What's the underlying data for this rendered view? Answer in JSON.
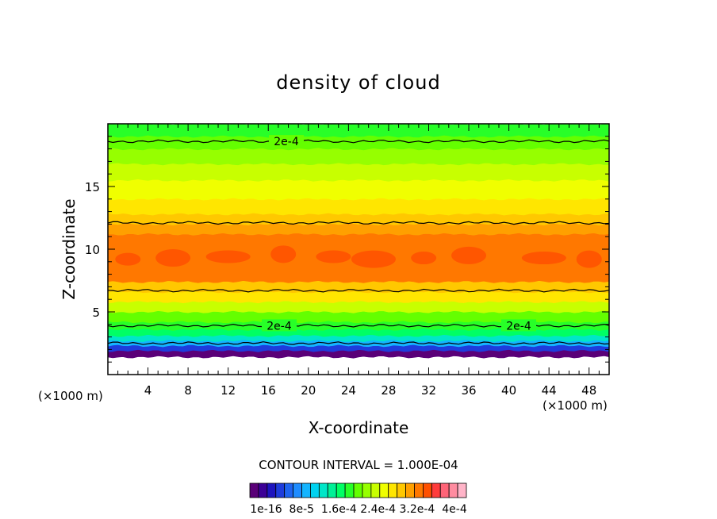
{
  "chart_data": {
    "type": "contour",
    "title": "density of cloud",
    "xlabel": "X-coordinate",
    "ylabel": "Z-coordinate",
    "x_unit_label": "(×1000 m)",
    "y_unit_label": "(×1000 m)",
    "xlim": [
      0,
      50
    ],
    "ylim": [
      0,
      20
    ],
    "xticks": [
      "4",
      "8",
      "12",
      "16",
      "20",
      "24",
      "28",
      "32",
      "36",
      "40",
      "44",
      "48"
    ],
    "yticks": [
      "5",
      "10",
      "15"
    ],
    "contour_interval_label": "CONTOUR INTERVAL = 1.000E-04",
    "contour_line_labels": [
      "2e-4",
      "2e-4",
      "2e-4"
    ],
    "colorbar_labels": [
      "1e-16",
      "8e-5",
      "1.6e-4",
      "2.4e-4",
      "3.2e-4",
      "4e-4"
    ],
    "colorbar_label_text": "1e-16  8e-5  1.6e-4 2.4e-4 3.2e-4  4e-4",
    "colorbar_colors": [
      "#5a0078",
      "#3c0096",
      "#1e14be",
      "#1e3cdc",
      "#1e64f0",
      "#1e8cff",
      "#14b4ff",
      "#00d2f0",
      "#00e6c8",
      "#00f096",
      "#00ff64",
      "#28ff28",
      "#64ff00",
      "#96ff00",
      "#c8ff00",
      "#f0ff00",
      "#ffe600",
      "#ffc800",
      "#ffa000",
      "#ff7800",
      "#ff5000",
      "#ff3c3c",
      "#ff6478",
      "#ff8ca0",
      "#ffb4c8"
    ],
    "bands": [
      {
        "z": [
          0.0,
          1.4
        ],
        "value_range": "0 - 1e-16",
        "color": "#ffffff"
      },
      {
        "z": [
          1.4,
          1.9
        ],
        "value_range": "1e-16 - 2e-5",
        "color": "#5a0078"
      },
      {
        "z": [
          1.9,
          2.3
        ],
        "value_range": "2e-5 - 6e-5",
        "color": "#1e3cdc"
      },
      {
        "z": [
          2.3,
          2.7
        ],
        "value_range": "6e-5 - 1e-4",
        "color": "#14b4ff"
      },
      {
        "z": [
          2.7,
          3.1
        ],
        "value_range": "1e-4 - 1.2e-4",
        "color": "#00e6c8"
      },
      {
        "z": [
          3.1,
          3.6
        ],
        "value_range": "1.2e-4 - 1.6e-4",
        "color": "#00ff64"
      },
      {
        "z": [
          3.6,
          4.2
        ],
        "value_range": "1.6e-4 - 2e-4",
        "color": "#28ff28"
      },
      {
        "z": [
          4.2,
          5.0
        ],
        "value_range": "2e-4 - 2.2e-4",
        "color": "#64ff00"
      },
      {
        "z": [
          5.0,
          5.8
        ],
        "value_range": "2.2e-4 - 2.5e-4",
        "color": "#c8ff00"
      },
      {
        "z": [
          5.8,
          6.6
        ],
        "value_range": "2.5e-4 - 2.8e-4",
        "color": "#ffe600"
      },
      {
        "z": [
          6.6,
          7.4
        ],
        "value_range": "2.8e-4 - 3.0e-4",
        "color": "#ffc800"
      },
      {
        "z": [
          7.4,
          11.2
        ],
        "value_range": "3.0e-4 - 3.4e-4",
        "color": "#ff7800"
      },
      {
        "z": [
          11.2,
          12.0
        ],
        "value_range": "2.8e-4 - 3.0e-4",
        "color": "#ffa000"
      },
      {
        "z": [
          12.0,
          12.8
        ],
        "value_range": "2.6e-4 - 2.8e-4",
        "color": "#ffc800"
      },
      {
        "z": [
          12.8,
          14.0
        ],
        "value_range": "2.4e-4 - 2.6e-4",
        "color": "#ffe600"
      },
      {
        "z": [
          14.0,
          15.5
        ],
        "value_range": "2.3e-4 - 2.4e-4",
        "color": "#f0ff00"
      },
      {
        "z": [
          15.5,
          16.8
        ],
        "value_range": "2.2e-4 - 2.3e-4",
        "color": "#c8ff00"
      },
      {
        "z": [
          16.8,
          18.0
        ],
        "value_range": "2.1e-4 - 2.2e-4",
        "color": "#96ff00"
      },
      {
        "z": [
          18.0,
          19.0
        ],
        "value_range": "2.0e-4 - 2.1e-4",
        "color": "#64ff00"
      },
      {
        "z": [
          19.0,
          20.0
        ],
        "value_range": "1.9e-4 - 2.0e-4",
        "color": "#28ff28"
      }
    ],
    "red_patches": [
      {
        "x": 2.0,
        "z": 9.2
      },
      {
        "x": 6.5,
        "z": 9.3
      },
      {
        "x": 12.0,
        "z": 9.4
      },
      {
        "x": 17.5,
        "z": 9.6
      },
      {
        "x": 22.5,
        "z": 9.4
      },
      {
        "x": 26.5,
        "z": 9.2
      },
      {
        "x": 31.5,
        "z": 9.3
      },
      {
        "x": 36.0,
        "z": 9.5
      },
      {
        "x": 43.5,
        "z": 9.3
      },
      {
        "x": 48.0,
        "z": 9.2
      }
    ],
    "contour_lines": [
      {
        "level": "2e-4",
        "z": 18.6
      },
      {
        "level": "2.8e-4",
        "z": 12.1
      },
      {
        "level": "2.8e-4",
        "z": 6.7
      },
      {
        "level": "2e-4",
        "z": 3.9
      },
      {
        "level": "1e-4",
        "z": 2.5
      }
    ],
    "grid": false,
    "colorbar_position": "bottom"
  }
}
